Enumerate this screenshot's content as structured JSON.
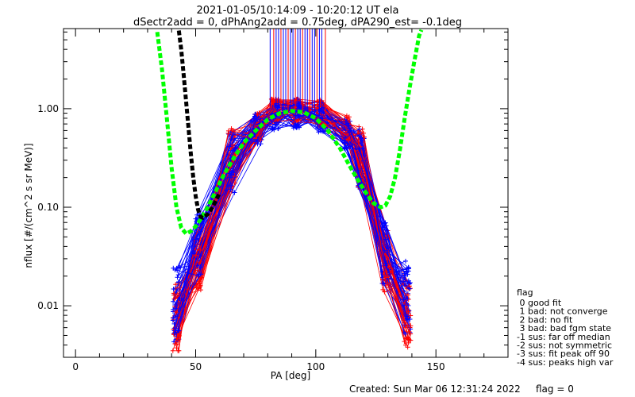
{
  "header": {
    "title": "2021-01-05/10:14:09 - 10:20:12 UT ela",
    "subtitle": "dSectr2add = 0, dPhAng2add = 0.75deg, dPA290_est=  -0.1deg"
  },
  "footer": {
    "created": "Created: Sun Mar 06 12:31:24 2022",
    "flag": "flag = 0"
  },
  "legend": {
    "title": "flag",
    "entries": [
      " 0 good fit",
      " 1 bad: not converge",
      " 2 bad: no fit",
      " 3 bad: bad fgm state",
      "-1 sus: far off median",
      "-2 sus: not symmetric",
      "-3 sus: fit peak off 90",
      "-4 sus: peaks high var"
    ]
  },
  "colors": {
    "series_a": "#0000ff",
    "series_b": "#ff0000",
    "fit_curve": "#00ff00",
    "model_curve": "#000000",
    "axes": "#000000"
  },
  "chart_data": {
    "type": "line",
    "xlabel": "PA [deg]",
    "ylabel": "nflux [#/(cm^2 s sr MeV)]",
    "xlim": [
      -5,
      180
    ],
    "ylim": [
      0.003,
      6.5
    ],
    "yscale": "log",
    "x_ticks": [
      0,
      50,
      100,
      150
    ],
    "x_tick_labels": [
      "0",
      "50",
      "100",
      "150"
    ],
    "y_ticks": [
      0.01,
      0.1,
      1.0
    ],
    "y_tick_labels": [
      "0.01",
      "0.10",
      "1.00"
    ],
    "grid": false,
    "legend_position": "right-bottom",
    "x_bins": [
      42,
      51,
      65,
      76,
      83,
      92,
      102,
      113,
      119,
      129,
      138
    ],
    "series": [
      {
        "color": "blue",
        "profile": [
          0.01,
          0.04,
          0.28,
          0.62,
          0.85,
          0.9,
          0.82,
          0.55,
          0.3,
          0.035,
          0.012
        ],
        "count": 45
      },
      {
        "color": "red",
        "profile": [
          0.007,
          0.03,
          0.3,
          0.68,
          0.95,
          0.98,
          0.9,
          0.6,
          0.32,
          0.028,
          0.009
        ],
        "count": 40
      },
      {
        "name": "",
        "color": "green",
        "style": "dashed-thick",
        "x": [
          34,
          36,
          38,
          40,
          42,
          44,
          46,
          48,
          50,
          52,
          55,
          58,
          62,
          66,
          70,
          75,
          80,
          85,
          90,
          95,
          100,
          105,
          110,
          115,
          120,
          124,
          127,
          129,
          131,
          133,
          135,
          137,
          139,
          141,
          143,
          144
        ],
        "y": [
          6.0,
          2.5,
          0.8,
          0.25,
          0.1,
          0.062,
          0.054,
          0.057,
          0.064,
          0.075,
          0.1,
          0.14,
          0.22,
          0.32,
          0.45,
          0.6,
          0.78,
          0.9,
          0.95,
          0.92,
          0.8,
          0.6,
          0.4,
          0.24,
          0.15,
          0.11,
          0.1,
          0.104,
          0.13,
          0.2,
          0.38,
          0.8,
          1.6,
          3.0,
          5.5,
          6.3
        ]
      },
      {
        "name": "",
        "color": "black",
        "style": "dashed-thick",
        "x": [
          43,
          44,
          45,
          46,
          47,
          48,
          49,
          50,
          51,
          52,
          53,
          55,
          57,
          60
        ],
        "y": [
          6.2,
          4.0,
          2.2,
          1.2,
          0.65,
          0.35,
          0.2,
          0.13,
          0.095,
          0.08,
          0.078,
          0.085,
          0.1,
          0.14
        ]
      },
      {
        "name": "",
        "color": "blue",
        "style": "vertical-spikes",
        "x": [
          81,
          82.5,
          83.5,
          84.5,
          85.5,
          86.5,
          87.5,
          88.5,
          89.5,
          90.5,
          91.5,
          92.5,
          93.5,
          94.5,
          95.5,
          96.5,
          97.5,
          98.5,
          99.5,
          100.5,
          101.5,
          102.5,
          104
        ],
        "y_from": [
          1.05,
          1.0,
          1.0,
          0.98,
          0.97,
          0.95,
          0.95,
          0.95,
          0.96,
          0.96,
          0.97,
          0.97,
          0.96,
          0.95,
          0.94,
          0.93,
          0.92,
          0.9,
          0.88,
          0.87,
          0.86,
          0.85,
          0.84
        ],
        "y_to": [
          6.5,
          6.5,
          6.5,
          6.5,
          6.5,
          6.5,
          6.5,
          6.5,
          6.5,
          6.5,
          6.5,
          6.5,
          6.5,
          6.5,
          6.5,
          6.5,
          6.5,
          6.5,
          6.5,
          6.5,
          6.5,
          6.5,
          6.5
        ]
      }
    ]
  }
}
